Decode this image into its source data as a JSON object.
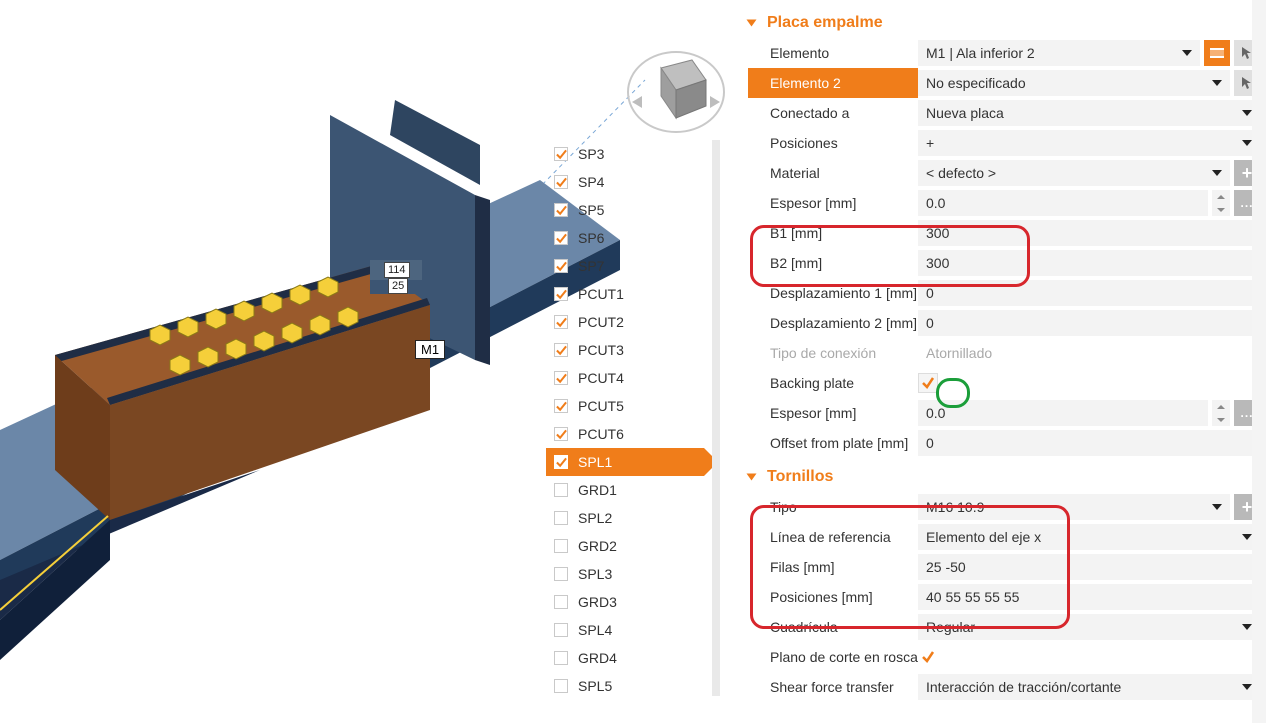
{
  "viewport": {
    "label_m1": "M1",
    "dim_top": "114",
    "dim_bottom": "25"
  },
  "tree": {
    "items": [
      {
        "label": "SP3",
        "checked": true
      },
      {
        "label": "SP4",
        "checked": true
      },
      {
        "label": "SP5",
        "checked": true
      },
      {
        "label": "SP6",
        "checked": true
      },
      {
        "label": "SP7",
        "checked": true
      },
      {
        "label": "PCUT1",
        "checked": true
      },
      {
        "label": "PCUT2",
        "checked": true
      },
      {
        "label": "PCUT3",
        "checked": true
      },
      {
        "label": "PCUT4",
        "checked": true
      },
      {
        "label": "PCUT5",
        "checked": true
      },
      {
        "label": "PCUT6",
        "checked": true
      },
      {
        "label": "SPL1",
        "checked": true,
        "selected": true
      },
      {
        "label": "GRD1",
        "checked": false
      },
      {
        "label": "SPL2",
        "checked": false
      },
      {
        "label": "GRD2",
        "checked": false
      },
      {
        "label": "SPL3",
        "checked": false
      },
      {
        "label": "GRD3",
        "checked": false
      },
      {
        "label": "SPL4",
        "checked": false
      },
      {
        "label": "GRD4",
        "checked": false
      },
      {
        "label": "SPL5",
        "checked": false
      }
    ]
  },
  "panel": {
    "section1_title": "Placa empalme",
    "elemento_label": "Elemento",
    "elemento_value": "M1 | Ala inferior 2",
    "elemento2_label": "Elemento 2",
    "elemento2_value": "No especificado",
    "conectado_label": "Conectado a",
    "conectado_value": "Nueva placa",
    "posiciones_label": "Posiciones",
    "posiciones_value": "+",
    "material_label": "Material",
    "material_value": "< defecto >",
    "espesor_label": "Espesor [mm]",
    "espesor_value": "0.0",
    "b1_label": "B1 [mm]",
    "b1_value": "300",
    "b2_label": "B2 [mm]",
    "b2_value": "300",
    "despl1_label": "Desplazamiento 1 [mm]",
    "despl1_value": "0",
    "despl2_label": "Desplazamiento 2 [mm]",
    "despl2_value": "0",
    "tipo_conex_label": "Tipo de conexión",
    "tipo_conex_value": "Atornillado",
    "backing_label": "Backing plate",
    "espesor2_label": "Espesor [mm]",
    "espesor2_value": "0.0",
    "offset_label": "Offset from plate [mm]",
    "offset_value": "0",
    "section2_title": "Tornillos",
    "tor_tipo_label": "Tipo",
    "tor_tipo_value": "M16 10.9",
    "tor_linea_label": "Línea de referencia",
    "tor_linea_value": "Elemento del eje x",
    "tor_filas_label": "Filas [mm]",
    "tor_filas_value": "25 -50",
    "tor_pos_label": "Posiciones [mm]",
    "tor_pos_value": "40 55 55 55 55",
    "tor_cuad_label": "Cuadrícula",
    "tor_cuad_value": "Regular",
    "tor_plano_label": "Plano de corte en rosca",
    "tor_shear_label": "Shear force transfer",
    "tor_shear_value": "Interacción de tracción/cortante"
  },
  "colors": {
    "accent": "#f07d1a",
    "callout_red": "#d7262c",
    "callout_green": "#1b9e3a",
    "beam_top": "#6b87a8",
    "beam_side": "#3c5573",
    "beam_front": "#203a5a",
    "plate_front": "#9a5a2c",
    "plate_side": "#6e3d1b",
    "plate_strip": "#1f2d45",
    "bolt_fill": "#f5cf3a",
    "bolt_stroke": "#8a7a16"
  }
}
